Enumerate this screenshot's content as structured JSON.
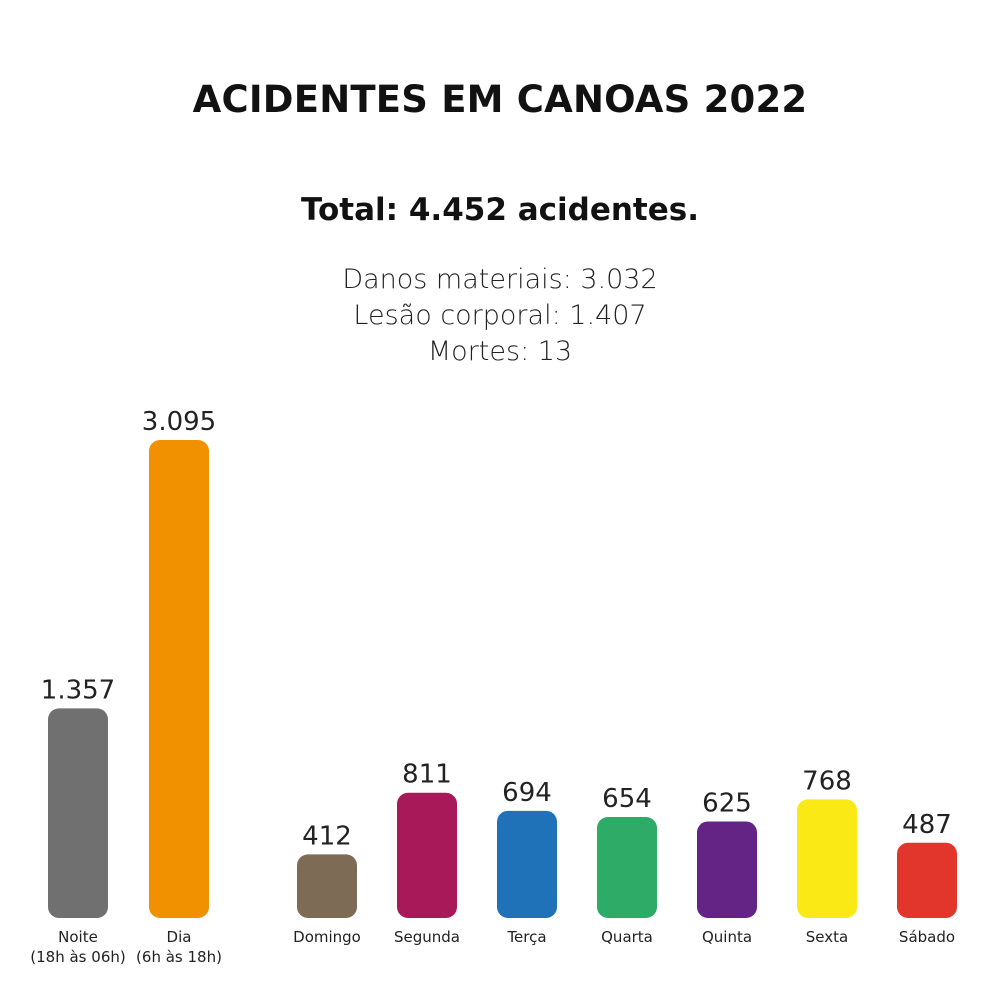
{
  "header": {
    "title": "ACIDENTES EM CANOAS 2022",
    "total": "Total: 4.452 acidentes.",
    "breakdown": [
      "Danos materiais: 3.032",
      "Lesão corporal: 1.407",
      "Mortes: 13"
    ]
  },
  "chart_data": {
    "type": "bar",
    "title": "ACIDENTES EM CANOAS 2022",
    "xlabel": "",
    "ylabel": "",
    "grid": false,
    "groups": [
      {
        "categories": [
          [
            "Noite",
            "(18h às 06h)"
          ],
          [
            "Dia",
            "(6h às 18h)"
          ]
        ],
        "values": [
          1357,
          3095
        ],
        "labels": [
          "1.357",
          "3.095"
        ],
        "colors": [
          "#707070",
          "#f29100"
        ]
      },
      {
        "categories": [
          [
            "Domingo"
          ],
          [
            "Segunda"
          ],
          [
            "Terça"
          ],
          [
            "Quarta"
          ],
          [
            "Quinta"
          ],
          [
            "Sexta"
          ],
          [
            "Sábado"
          ]
        ],
        "values": [
          412,
          811,
          694,
          654,
          625,
          768,
          487
        ],
        "labels": [
          "412",
          "811",
          "694",
          "654",
          "625",
          "768",
          "487"
        ],
        "colors": [
          "#7d6b56",
          "#a8195a",
          "#1f72b8",
          "#2eab67",
          "#632485",
          "#fbe915",
          "#e2352b"
        ]
      }
    ]
  }
}
